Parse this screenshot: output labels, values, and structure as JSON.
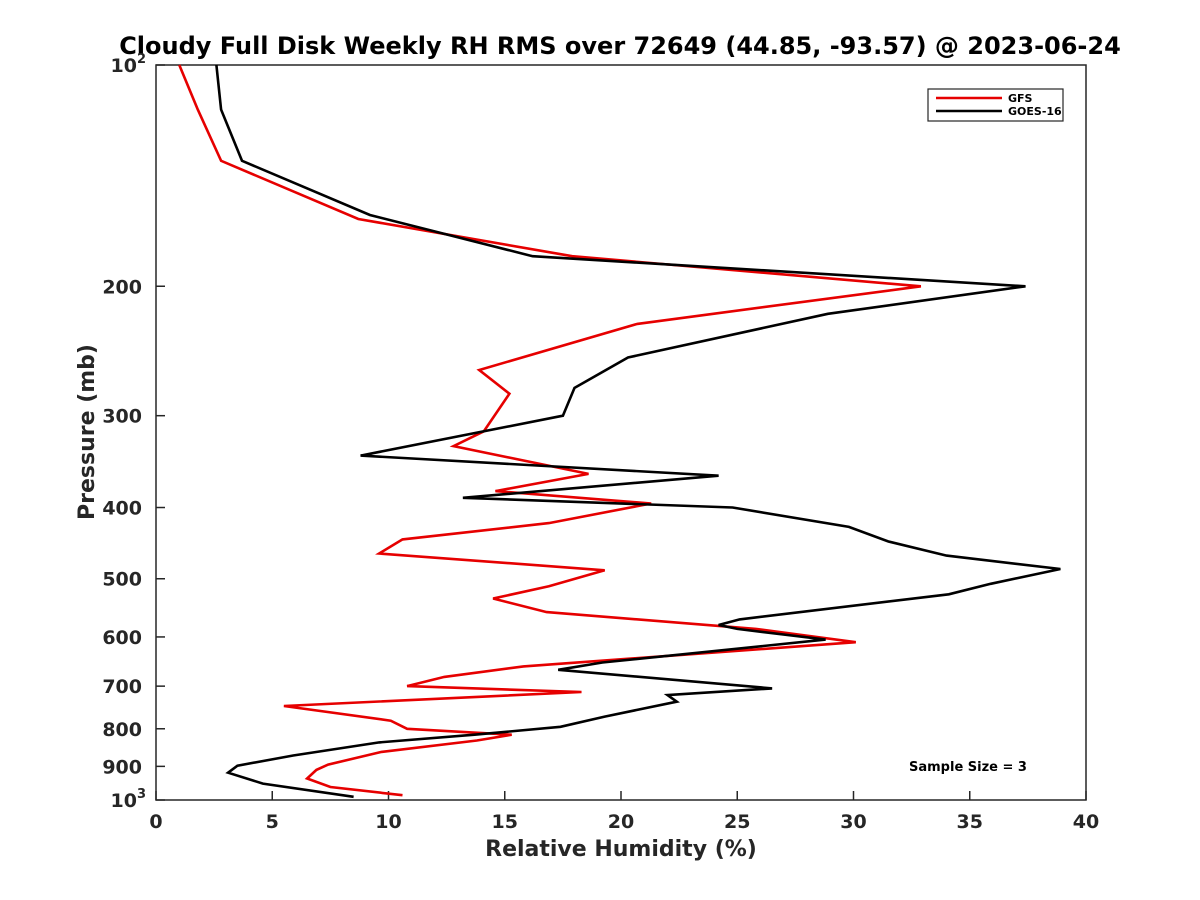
{
  "chart_data": {
    "type": "line",
    "title": "Cloudy Full Disk Weekly RH RMS over 72649 (44.85, -93.57) @ 2023-06-24",
    "xlabel": "Relative Humidity (%)",
    "ylabel": "Pressure (mb)",
    "xlim": [
      0,
      40
    ],
    "ylim": [
      100,
      1000
    ],
    "yscale": "log",
    "y_reversed": true,
    "grid": false,
    "legend_position": "top-right",
    "x_ticks": [
      "0",
      "5",
      "10",
      "15",
      "20",
      "25",
      "30",
      "35",
      "40"
    ],
    "y_ticks": [
      {
        "value": 100,
        "base": "10",
        "exp": "2"
      },
      {
        "value": 200,
        "label": "200"
      },
      {
        "value": 300,
        "label": "300"
      },
      {
        "value": 400,
        "label": "400"
      },
      {
        "value": 500,
        "label": "500"
      },
      {
        "value": 600,
        "label": "600"
      },
      {
        "value": 700,
        "label": "700"
      },
      {
        "value": 800,
        "label": "800"
      },
      {
        "value": 900,
        "label": "900"
      },
      {
        "value": 1000,
        "base": "10",
        "exp": "3"
      }
    ],
    "annotation": "Sample Size = 3",
    "series": [
      {
        "name": "GFS",
        "color": "#e60000",
        "points": [
          [
            1.0,
            100
          ],
          [
            1.8,
            115
          ],
          [
            2.8,
            135
          ],
          [
            8.7,
            162
          ],
          [
            17.9,
            182
          ],
          [
            32.9,
            200
          ],
          [
            20.7,
            225
          ],
          [
            13.9,
            260
          ],
          [
            15.2,
            280
          ],
          [
            14.1,
            315
          ],
          [
            12.8,
            330
          ],
          [
            18.6,
            360
          ],
          [
            14.6,
            380
          ],
          [
            21.3,
            395
          ],
          [
            16.9,
            420
          ],
          [
            10.6,
            442
          ],
          [
            9.6,
            462
          ],
          [
            19.3,
            487
          ],
          [
            16.9,
            512
          ],
          [
            14.5,
            532
          ],
          [
            16.8,
            555
          ],
          [
            25.8,
            585
          ],
          [
            30.1,
            610
          ],
          [
            15.8,
            658
          ],
          [
            12.4,
            680
          ],
          [
            10.8,
            700
          ],
          [
            18.3,
            713
          ],
          [
            5.5,
            745
          ],
          [
            10.1,
            780
          ],
          [
            10.8,
            800
          ],
          [
            15.3,
            815
          ],
          [
            13.8,
            830
          ],
          [
            9.7,
            860
          ],
          [
            7.4,
            895
          ],
          [
            6.9,
            910
          ],
          [
            6.5,
            935
          ],
          [
            7.5,
            960
          ],
          [
            10.6,
            985
          ]
        ]
      },
      {
        "name": "GOES-16",
        "color": "#000000",
        "points": [
          [
            2.6,
            100
          ],
          [
            2.8,
            115
          ],
          [
            3.7,
            135
          ],
          [
            9.2,
            160
          ],
          [
            16.2,
            182
          ],
          [
            37.4,
            200
          ],
          [
            28.9,
            218
          ],
          [
            20.3,
            250
          ],
          [
            18.0,
            275
          ],
          [
            17.5,
            300
          ],
          [
            8.8,
            340
          ],
          [
            24.2,
            362
          ],
          [
            13.2,
            388
          ],
          [
            24.8,
            400
          ],
          [
            29.8,
            425
          ],
          [
            31.5,
            445
          ],
          [
            34.0,
            465
          ],
          [
            38.9,
            485
          ],
          [
            35.9,
            508
          ],
          [
            34.1,
            525
          ],
          [
            25.1,
            568
          ],
          [
            24.2,
            578
          ],
          [
            25.0,
            585
          ],
          [
            28.8,
            605
          ],
          [
            19.2,
            650
          ],
          [
            17.3,
            665
          ],
          [
            26.5,
            705
          ],
          [
            22.0,
            720
          ],
          [
            22.4,
            735
          ],
          [
            19.3,
            770
          ],
          [
            17.4,
            795
          ],
          [
            13.7,
            815
          ],
          [
            9.6,
            835
          ],
          [
            5.9,
            870
          ],
          [
            3.5,
            898
          ],
          [
            3.1,
            918
          ],
          [
            4.6,
            950
          ],
          [
            8.5,
            990
          ]
        ]
      }
    ]
  }
}
